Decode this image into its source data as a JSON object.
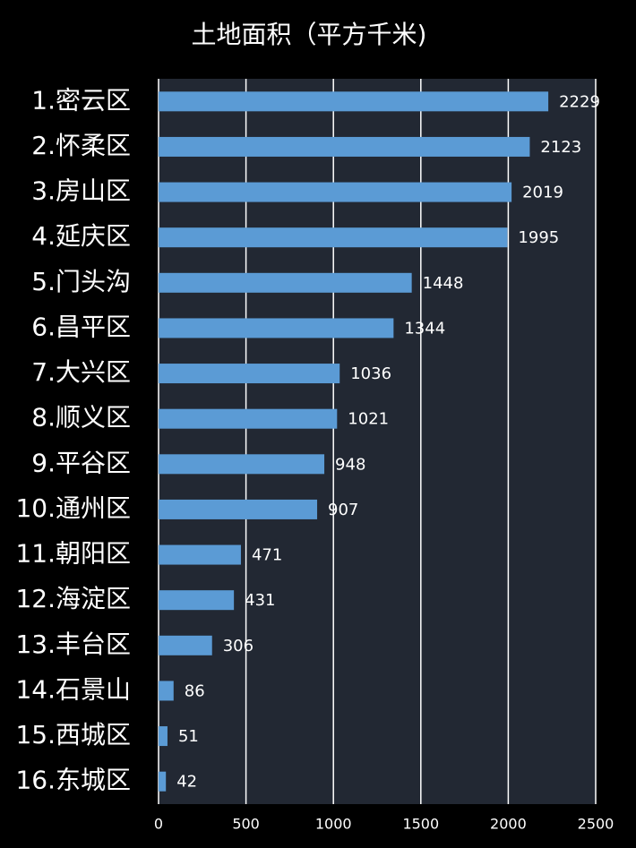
{
  "chart_data": {
    "type": "bar",
    "orientation": "horizontal",
    "title": "土地面积（平方千米)",
    "categories": [
      "1.密云区",
      "2.怀柔区",
      "3.房山区",
      "4.延庆区",
      "5.门头沟",
      "6.昌平区",
      "7.大兴区",
      "8.顺义区",
      "9.平谷区",
      "10.通州区",
      "11.朝阳区",
      "12.海淀区",
      "13.丰台区",
      "14.石景山",
      "15.西城区",
      "16.东城区"
    ],
    "values": [
      2229,
      2123,
      2019,
      1995,
      1448,
      1344,
      1036,
      1021,
      948,
      907,
      471,
      431,
      306,
      86,
      51,
      42
    ],
    "color": "#5b9bd5",
    "xlim": [
      0,
      2500
    ],
    "xticks": [
      0,
      500,
      1000,
      1500,
      2000,
      2500
    ],
    "grid": true
  }
}
